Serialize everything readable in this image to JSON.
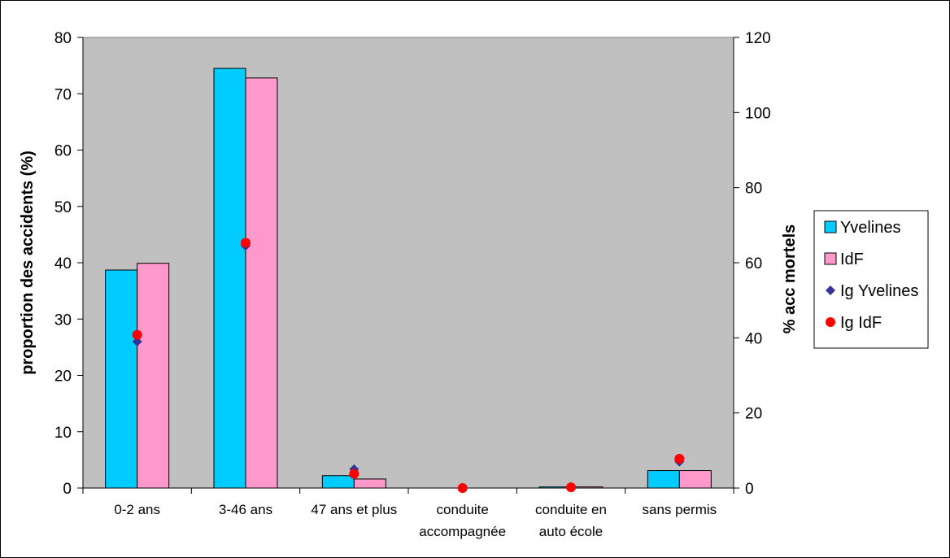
{
  "chart_data": {
    "type": "bar",
    "categories": [
      [
        "0-2 ans"
      ],
      [
        "3-46 ans"
      ],
      [
        "47 ans et plus"
      ],
      [
        "conduite",
        "accompagnée"
      ],
      [
        "conduite en",
        "auto école"
      ],
      [
        "sans permis"
      ]
    ],
    "ylabel": "proportion des accidents (%)",
    "y2label": "% acc mortels",
    "ylim": [
      0,
      80
    ],
    "y2lim": [
      0,
      120
    ],
    "yticks": [
      0,
      10,
      20,
      30,
      40,
      50,
      60,
      70,
      80
    ],
    "y2ticks": [
      0,
      20,
      40,
      60,
      80,
      100,
      120
    ],
    "series": [
      {
        "name": "Yvelines",
        "kind": "bar",
        "axis": "left",
        "color": "#00CCFF",
        "values": [
          38.7,
          74.5,
          2.2,
          0,
          0.2,
          3.1
        ]
      },
      {
        "name": "IdF",
        "kind": "bar",
        "axis": "left",
        "color": "#FF99CC",
        "values": [
          39.9,
          72.8,
          1.6,
          0,
          0.2,
          3.1
        ]
      },
      {
        "name": "Ig Yvelines",
        "kind": "marker",
        "marker": "diamond",
        "axis": "right",
        "color": "#333399",
        "values": [
          39,
          64.5,
          5,
          0,
          0.3,
          7
        ]
      },
      {
        "name": "Ig IdF",
        "kind": "marker",
        "marker": "circle",
        "axis": "right",
        "color": "#FF0000",
        "values": [
          40.8,
          65.3,
          3.8,
          0,
          0.2,
          7.8
        ]
      }
    ],
    "grid": false,
    "legend_position": "right"
  }
}
